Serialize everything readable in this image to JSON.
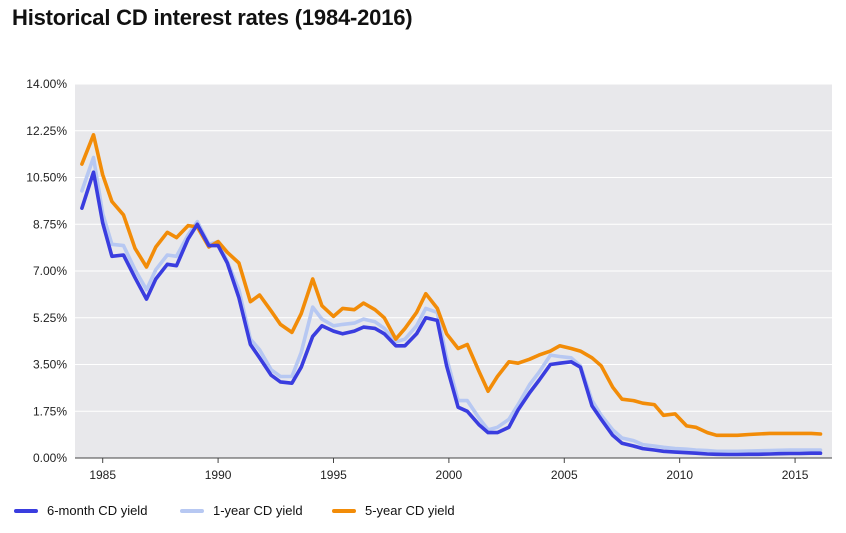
{
  "title": "Historical CD interest rates (1984-2016)",
  "colors": {
    "plot_background": "#e8e8eb",
    "gridline": "#ffffff",
    "axis": "#444444"
  },
  "legend": [
    {
      "label": "6-month CD yield",
      "color": "#3a3ddf"
    },
    {
      "label": "1-year CD yield",
      "color": "#b7c8f2"
    },
    {
      "label": "5-year CD yield",
      "color": "#f28c08"
    }
  ],
  "chart_data": {
    "type": "line",
    "title": "Historical CD interest rates (1984-2016)",
    "xlabel": "",
    "ylabel": "",
    "xlim": [
      1983.8,
      2016.6
    ],
    "ylim": [
      0,
      14
    ],
    "grid": true,
    "legend_position": "bottom",
    "x_ticks": [
      1985,
      1990,
      1995,
      2000,
      2005,
      2010,
      2015
    ],
    "x_tick_labels": [
      "1985",
      "1990",
      "1995",
      "2000",
      "2005",
      "2010",
      "2015"
    ],
    "y_ticks": [
      0,
      1.75,
      3.5,
      5.25,
      7,
      8.75,
      10.5,
      12.25,
      14
    ],
    "y_tick_labels": [
      "0.00%",
      "1.75%",
      "3.50%",
      "5.25%",
      "7.00%",
      "8.75%",
      "10.50%",
      "12.25%",
      "14.00%"
    ],
    "series": [
      {
        "name": "6-month CD yield",
        "color": "#3a3ddf",
        "x": [
          1984.1,
          1984.6,
          1985.0,
          1985.4,
          1985.9,
          1986.4,
          1986.9,
          1987.3,
          1987.8,
          1988.2,
          1988.7,
          1989.1,
          1989.6,
          1990.0,
          1990.4,
          1990.9,
          1991.4,
          1991.8,
          1992.3,
          1992.7,
          1993.2,
          1993.6,
          1994.1,
          1994.5,
          1995.0,
          1995.4,
          1995.9,
          1996.3,
          1996.8,
          1997.2,
          1997.7,
          1998.1,
          1998.6,
          1999.0,
          1999.5,
          1999.9,
          2000.4,
          2000.8,
          2001.3,
          2001.7,
          2002.1,
          2002.6,
          2003.0,
          2003.5,
          2003.9,
          2004.4,
          2004.8,
          2005.3,
          2005.7,
          2006.2,
          2006.6,
          2007.1,
          2007.5,
          2008.0,
          2008.4,
          2008.9,
          2009.3,
          2009.8,
          2010.3,
          2010.7,
          2011.2,
          2011.6,
          2012.1,
          2012.5,
          2013.0,
          2013.4,
          2013.9,
          2014.3,
          2014.8,
          2015.2,
          2015.7,
          2016.1
        ],
        "values": [
          9.35,
          10.7,
          8.8,
          7.55,
          7.6,
          6.75,
          5.95,
          6.7,
          7.25,
          7.2,
          8.2,
          8.75,
          7.95,
          7.95,
          7.3,
          6.0,
          4.25,
          3.75,
          3.1,
          2.85,
          2.8,
          3.4,
          4.55,
          4.95,
          4.75,
          4.65,
          4.75,
          4.9,
          4.85,
          4.65,
          4.2,
          4.2,
          4.65,
          5.25,
          5.15,
          3.45,
          1.9,
          1.75,
          1.25,
          0.95,
          0.95,
          1.15,
          1.8,
          2.45,
          2.9,
          3.5,
          3.55,
          3.6,
          3.4,
          1.95,
          1.45,
          0.85,
          0.55,
          0.45,
          0.35,
          0.3,
          0.25,
          0.22,
          0.2,
          0.18,
          0.15,
          0.14,
          0.13,
          0.13,
          0.14,
          0.14,
          0.15,
          0.16,
          0.17,
          0.17,
          0.18,
          0.18
        ]
      },
      {
        "name": "1-year CD yield",
        "color": "#b7c8f2",
        "x": [
          1984.1,
          1984.6,
          1985.0,
          1985.4,
          1985.9,
          1986.4,
          1986.9,
          1987.3,
          1987.8,
          1988.2,
          1988.7,
          1989.1,
          1989.6,
          1990.0,
          1990.4,
          1990.9,
          1991.4,
          1991.8,
          1992.3,
          1992.7,
          1993.2,
          1993.6,
          1994.1,
          1994.5,
          1995.0,
          1995.4,
          1995.9,
          1996.3,
          1996.8,
          1997.2,
          1997.7,
          1998.1,
          1998.6,
          1999.0,
          1999.5,
          1999.9,
          2000.4,
          2000.8,
          2001.3,
          2001.7,
          2002.1,
          2002.6,
          2003.0,
          2003.5,
          2003.9,
          2004.4,
          2004.8,
          2005.3,
          2005.7,
          2006.2,
          2006.6,
          2007.1,
          2007.5,
          2008.0,
          2008.4,
          2008.9,
          2009.3,
          2009.8,
          2010.3,
          2010.7,
          2011.2,
          2011.6,
          2012.1,
          2012.5,
          2013.0,
          2013.4,
          2013.9,
          2014.3,
          2014.8,
          2015.2,
          2015.7,
          2016.1
        ],
        "values": [
          10.0,
          11.25,
          9.15,
          8.0,
          7.95,
          7.05,
          6.3,
          7.05,
          7.6,
          7.55,
          8.35,
          8.85,
          8.0,
          8.1,
          7.35,
          6.3,
          4.45,
          4.05,
          3.3,
          3.05,
          3.05,
          3.95,
          5.65,
          5.2,
          4.95,
          5.0,
          5.05,
          5.2,
          5.1,
          4.85,
          4.35,
          4.45,
          4.95,
          5.6,
          5.45,
          3.75,
          2.15,
          2.15,
          1.5,
          1.05,
          1.15,
          1.45,
          2.0,
          2.75,
          3.2,
          3.85,
          3.8,
          3.75,
          3.45,
          2.15,
          1.6,
          1.05,
          0.75,
          0.65,
          0.5,
          0.45,
          0.4,
          0.35,
          0.33,
          0.3,
          0.28,
          0.25,
          0.25,
          0.25,
          0.26,
          0.27,
          0.28,
          0.29,
          0.3,
          0.3,
          0.3,
          0.3
        ]
      },
      {
        "name": "5-year CD yield",
        "color": "#f28c08",
        "x": [
          1984.1,
          1984.6,
          1985.0,
          1985.4,
          1985.9,
          1986.4,
          1986.9,
          1987.3,
          1987.8,
          1988.2,
          1988.7,
          1989.1,
          1989.6,
          1990.0,
          1990.4,
          1990.9,
          1991.4,
          1991.8,
          1992.3,
          1992.7,
          1993.2,
          1993.6,
          1994.1,
          1994.5,
          1995.0,
          1995.4,
          1995.9,
          1996.3,
          1996.8,
          1997.2,
          1997.7,
          1998.1,
          1998.6,
          1999.0,
          1999.5,
          1999.9,
          2000.4,
          2000.8,
          2001.3,
          2001.7,
          2002.1,
          2002.6,
          2003.0,
          2003.5,
          2003.9,
          2004.4,
          2004.8,
          2005.3,
          2005.7,
          2006.2,
          2006.6,
          2007.1,
          2007.5,
          2008.0,
          2008.4,
          2008.9,
          2009.3,
          2009.8,
          2010.3,
          2010.7,
          2011.2,
          2011.6,
          2012.1,
          2012.5,
          2013.0,
          2013.4,
          2013.9,
          2014.3,
          2014.8,
          2015.2,
          2015.7,
          2016.1
        ],
        "values": [
          11.0,
          12.1,
          10.6,
          9.6,
          9.1,
          7.85,
          7.15,
          7.9,
          8.45,
          8.25,
          8.7,
          8.65,
          7.9,
          8.1,
          7.7,
          7.3,
          5.85,
          6.1,
          5.5,
          5.0,
          4.7,
          5.4,
          6.7,
          5.7,
          5.3,
          5.6,
          5.55,
          5.8,
          5.55,
          5.25,
          4.45,
          4.85,
          5.45,
          6.15,
          5.6,
          4.65,
          4.1,
          4.25,
          3.25,
          2.5,
          3.05,
          3.6,
          3.55,
          3.7,
          3.85,
          4.0,
          4.2,
          4.1,
          4.0,
          3.75,
          3.45,
          2.65,
          2.2,
          2.15,
          2.05,
          2.0,
          1.6,
          1.65,
          1.2,
          1.15,
          0.95,
          0.85,
          0.85,
          0.85,
          0.88,
          0.9,
          0.92,
          0.92,
          0.92,
          0.92,
          0.92,
          0.9
        ]
      }
    ]
  }
}
